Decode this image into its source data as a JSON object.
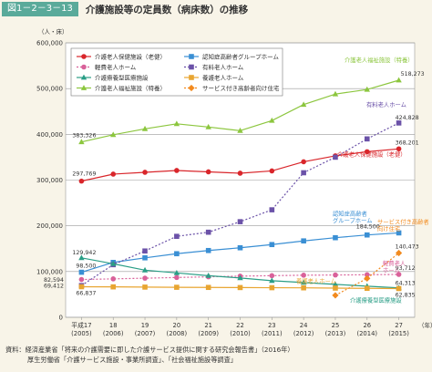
{
  "header": {
    "figure_no": "図1－2－3－13",
    "title": "介護施設等の定員数（病床数）の推移"
  },
  "source": {
    "line1": "資料：経済産業省「将来の介護需要に即した介護サービス提供に関する研究会報告書」（2016年）",
    "line2": "厚生労働省「介護サービス施設・事業所調査」、「社会福祉施設等調査」"
  },
  "chart_data": {
    "type": "line",
    "ylabel": "（人・床）",
    "xunit": "（年）",
    "ylim": [
      0,
      600000
    ],
    "yticks": [
      0,
      100000,
      200000,
      300000,
      400000,
      500000,
      600000
    ],
    "ytick_labels": [
      "0",
      "100,000",
      "200,000",
      "300,000",
      "400,000",
      "500,000",
      "600,000"
    ],
    "x_labels": [
      {
        "y": "平成17",
        "w": "(2005)"
      },
      {
        "y": "18",
        "w": "(2006)"
      },
      {
        "y": "19",
        "w": "(2007)"
      },
      {
        "y": "20",
        "w": "(2008)"
      },
      {
        "y": "21",
        "w": "(2009)"
      },
      {
        "y": "22",
        "w": "(2010)"
      },
      {
        "y": "23",
        "w": "(2011)"
      },
      {
        "y": "24",
        "w": "(2012)"
      },
      {
        "y": "25",
        "w": "(2013)"
      },
      {
        "y": "26",
        "w": "(2014)"
      },
      {
        "y": "27",
        "w": "(2015)"
      }
    ],
    "grid": "horizontal",
    "legend_position": "top-left",
    "series": [
      {
        "name": "介護老人保健施設（老健）",
        "color": "#d9262b",
        "dash": "",
        "marker": "circle",
        "values": [
          297769,
          313000,
          317000,
          321000,
          318000,
          315000,
          320000,
          340000,
          353000,
          362000,
          368201
        ],
        "end_value": "368,201",
        "start_value": "297,769",
        "inline_label": "介護老人保健施設（老健）"
      },
      {
        "name": "認知症高齢者グループホーム",
        "color": "#3a8fd4",
        "dash": "",
        "marker": "square",
        "values": [
          98500,
          120000,
          130000,
          139000,
          146000,
          152000,
          159000,
          167000,
          174000,
          180000,
          184500
        ],
        "end_value": "184,500",
        "start_value": "98,500",
        "inline_label": "認知症高齢者\nグループホーム"
      },
      {
        "name": "軽費老人ホーム",
        "color": "#d9619a",
        "dash": "2,2",
        "marker": "circle",
        "values": [
          82594,
          84000,
          85500,
          87000,
          88500,
          90000,
          91000,
          92000,
          92500,
          93000,
          93712
        ],
        "end_value": "93,712",
        "start_value": "82,594",
        "inline_label": "軽費老人\nホーム"
      },
      {
        "name": "有料老人ホーム",
        "color": "#6b52a8",
        "dash": "2,2",
        "marker": "square",
        "values": [
          69412,
          115000,
          145000,
          177000,
          186000,
          209000,
          235000,
          316000,
          350000,
          390000,
          424828
        ],
        "end_value": "424,828",
        "start_value": "69,412",
        "inline_label": "有料老人ホーム"
      },
      {
        "name": "介護療養型医療施設",
        "color": "#2a9e86",
        "dash": "",
        "marker": "triangle",
        "values": [
          129942,
          117000,
          103000,
          97000,
          91000,
          86000,
          80000,
          76000,
          72000,
          68000,
          64313
        ],
        "end_value": "64,313",
        "start_value": "129,942",
        "inline_label": "介護療養型医療施設"
      },
      {
        "name": "養護老人ホーム",
        "color": "#e8a531",
        "dash": "",
        "marker": "square",
        "values": [
          66837,
          66500,
          66000,
          65600,
          65300,
          65000,
          64700,
          64400,
          63800,
          63300,
          62835
        ],
        "end_value": "62,835",
        "start_value": "66,837",
        "inline_label": "養護老人ホーム"
      },
      {
        "name": "介護老人福祉施設（特養）",
        "color": "#8cc63e",
        "dash": "",
        "marker": "triangle",
        "values": [
          383326,
          399000,
          412000,
          423000,
          416000,
          408000,
          430000,
          465000,
          488000,
          498000,
          518273
        ],
        "end_value": "518,273",
        "start_value": "383,326",
        "inline_label": "介護老人福祉施設（特養）"
      },
      {
        "name": "サービス付き高齢者向け住宅",
        "color": "#f28a1e",
        "dash": "2,2",
        "marker": "diamond",
        "values": [
          null,
          null,
          null,
          null,
          null,
          null,
          null,
          null,
          48000,
          85000,
          140473
        ],
        "end_value": "140,473",
        "inline_label": "サービス付き高齢者\n向け住宅"
      }
    ]
  }
}
